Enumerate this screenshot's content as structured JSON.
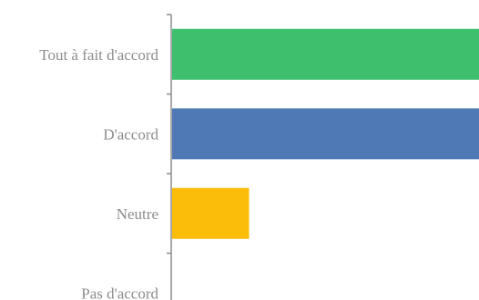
{
  "chart_data": {
    "type": "bar",
    "orientation": "horizontal",
    "categories": [
      "Tout à fait d'accord",
      "D'accord",
      "Neutre",
      "Pas d'accord"
    ],
    "values": [
      40,
      40,
      10,
      0
    ],
    "xlim": [
      0,
      40
    ],
    "grid": false,
    "legend": "none",
    "colors": [
      "#3dbf6e",
      "#4f79b4",
      "#fbbd0a",
      "#cccccc"
    ]
  },
  "colors": {
    "axis": "#8c8c8c",
    "label": "#8c8c8c",
    "background": "#ffffff"
  }
}
